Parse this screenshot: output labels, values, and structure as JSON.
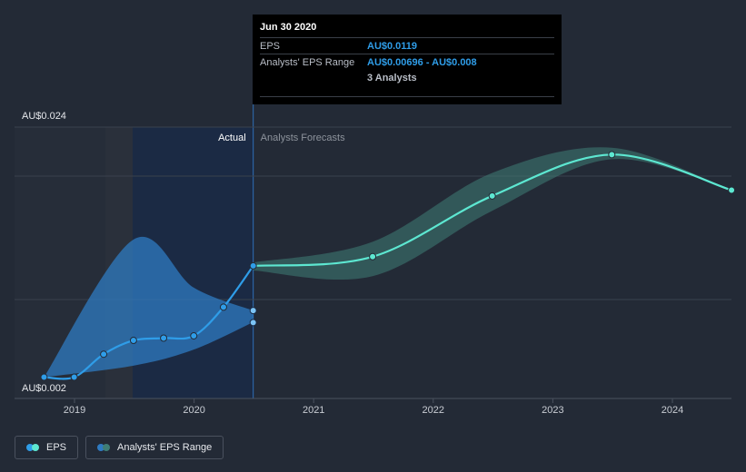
{
  "chart_data": {
    "type": "line",
    "y_axis": {
      "top_label": "AU$0.024",
      "bottom_label": "AU$0.002",
      "ylim": [
        0.002,
        0.024
      ]
    },
    "x_ticks": [
      "2019",
      "2020",
      "2021",
      "2022",
      "2023",
      "2024"
    ],
    "region_labels": {
      "actual": "Actual",
      "forecast": "Analysts Forecasts"
    },
    "grid": true,
    "series": [
      {
        "name": "EPS",
        "kind": "actual",
        "color": "#2f9de8",
        "points": [
          {
            "date": "2018-09-30",
            "value": 0.0022
          },
          {
            "date": "2018-12-31",
            "value": 0.0022
          },
          {
            "date": "2019-03-31",
            "value": 0.0042
          },
          {
            "date": "2019-06-30",
            "value": 0.0054
          },
          {
            "date": "2019-09-30",
            "value": 0.0056
          },
          {
            "date": "2019-12-31",
            "value": 0.0058
          },
          {
            "date": "2020-03-31",
            "value": 0.0083
          },
          {
            "date": "2020-06-30",
            "value": 0.0119
          }
        ]
      },
      {
        "name": "EPS",
        "kind": "forecast",
        "color": "#5de7d1",
        "points": [
          {
            "date": "2020-06-30",
            "value": 0.0119
          },
          {
            "date": "2021-06-30",
            "value": 0.0127
          },
          {
            "date": "2022-06-30",
            "value": 0.018
          },
          {
            "date": "2023-06-30",
            "value": 0.0216
          },
          {
            "date": "2024-06-30",
            "value": 0.0185
          }
        ]
      }
    ],
    "range_bands": [
      {
        "name": "Analysts' EPS Range",
        "kind": "actual",
        "color": "#2f7bc2",
        "points": [
          {
            "date": "2018-09-30",
            "low": 0.0022,
            "high": 0.0022
          },
          {
            "date": "2019-06-30",
            "low": 0.0032,
            "high": 0.0142
          },
          {
            "date": "2019-12-31",
            "low": 0.0046,
            "high": 0.01
          },
          {
            "date": "2020-06-30",
            "low": 0.007,
            "high": 0.008
          }
        ]
      },
      {
        "name": "Analysts' EPS Range",
        "kind": "forecast",
        "color": "#3f7e76",
        "points": [
          {
            "date": "2020-06-30",
            "low": 0.0115,
            "high": 0.0122
          },
          {
            "date": "2021-06-30",
            "low": 0.011,
            "high": 0.014
          },
          {
            "date": "2022-06-30",
            "low": 0.0167,
            "high": 0.02
          },
          {
            "date": "2023-06-30",
            "low": 0.0212,
            "high": 0.0222
          },
          {
            "date": "2024-06-30",
            "low": 0.0185,
            "high": 0.0185
          }
        ]
      }
    ],
    "range_markers": [
      0.00696,
      0.008
    ]
  },
  "tooltip": {
    "date": "Jun 30 2020",
    "eps_label": "EPS",
    "eps_value": "AU$0.0119",
    "range_label": "Analysts' EPS Range",
    "range_value": "AU$0.00696 - AU$0.008",
    "analysts": "3 Analysts"
  },
  "legend": [
    {
      "label": "EPS",
      "colors": [
        "#2f9de8",
        "#5de7d1"
      ]
    },
    {
      "label": "Analysts' EPS Range",
      "colors": [
        "#2f7bc2",
        "#3f7e76"
      ]
    }
  ]
}
